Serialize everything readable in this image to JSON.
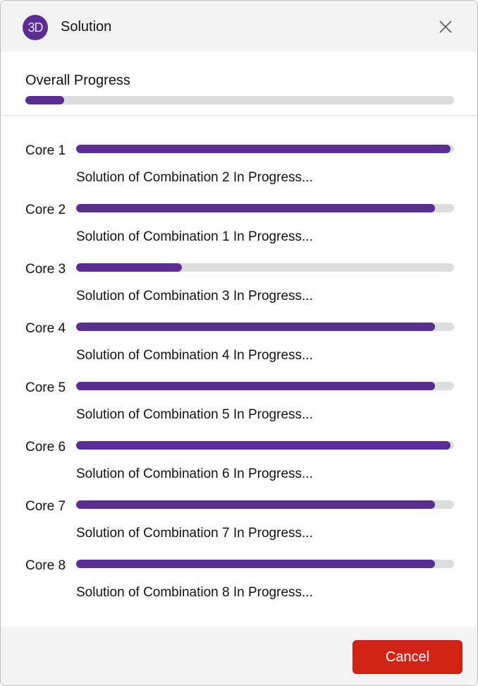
{
  "window": {
    "logo_text": "3D",
    "title": "Solution",
    "close_icon": "close-icon"
  },
  "overall": {
    "label": "Overall Progress",
    "progress": 9
  },
  "cores": [
    {
      "label": "Core 1",
      "progress": 99,
      "status": "Solution of Combination 2 In Progress..."
    },
    {
      "label": "Core 2",
      "progress": 95,
      "status": "Solution of Combination 1 In Progress..."
    },
    {
      "label": "Core 3",
      "progress": 28,
      "status": "Solution of Combination 3 In Progress..."
    },
    {
      "label": "Core 4",
      "progress": 95,
      "status": "Solution of Combination 4 In Progress..."
    },
    {
      "label": "Core 5",
      "progress": 95,
      "status": "Solution of Combination 5 In Progress..."
    },
    {
      "label": "Core 6",
      "progress": 99,
      "status": "Solution of Combination 6 In Progress..."
    },
    {
      "label": "Core 7",
      "progress": 95,
      "status": "Solution of Combination 7 In Progress..."
    },
    {
      "label": "Core 8",
      "progress": 95,
      "status": "Solution of Combination 8 In Progress..."
    }
  ],
  "footer": {
    "cancel_label": "Cancel"
  },
  "colors": {
    "accent": "#5a2d91",
    "track": "#dddddd",
    "cancel": "#cf2416"
  }
}
